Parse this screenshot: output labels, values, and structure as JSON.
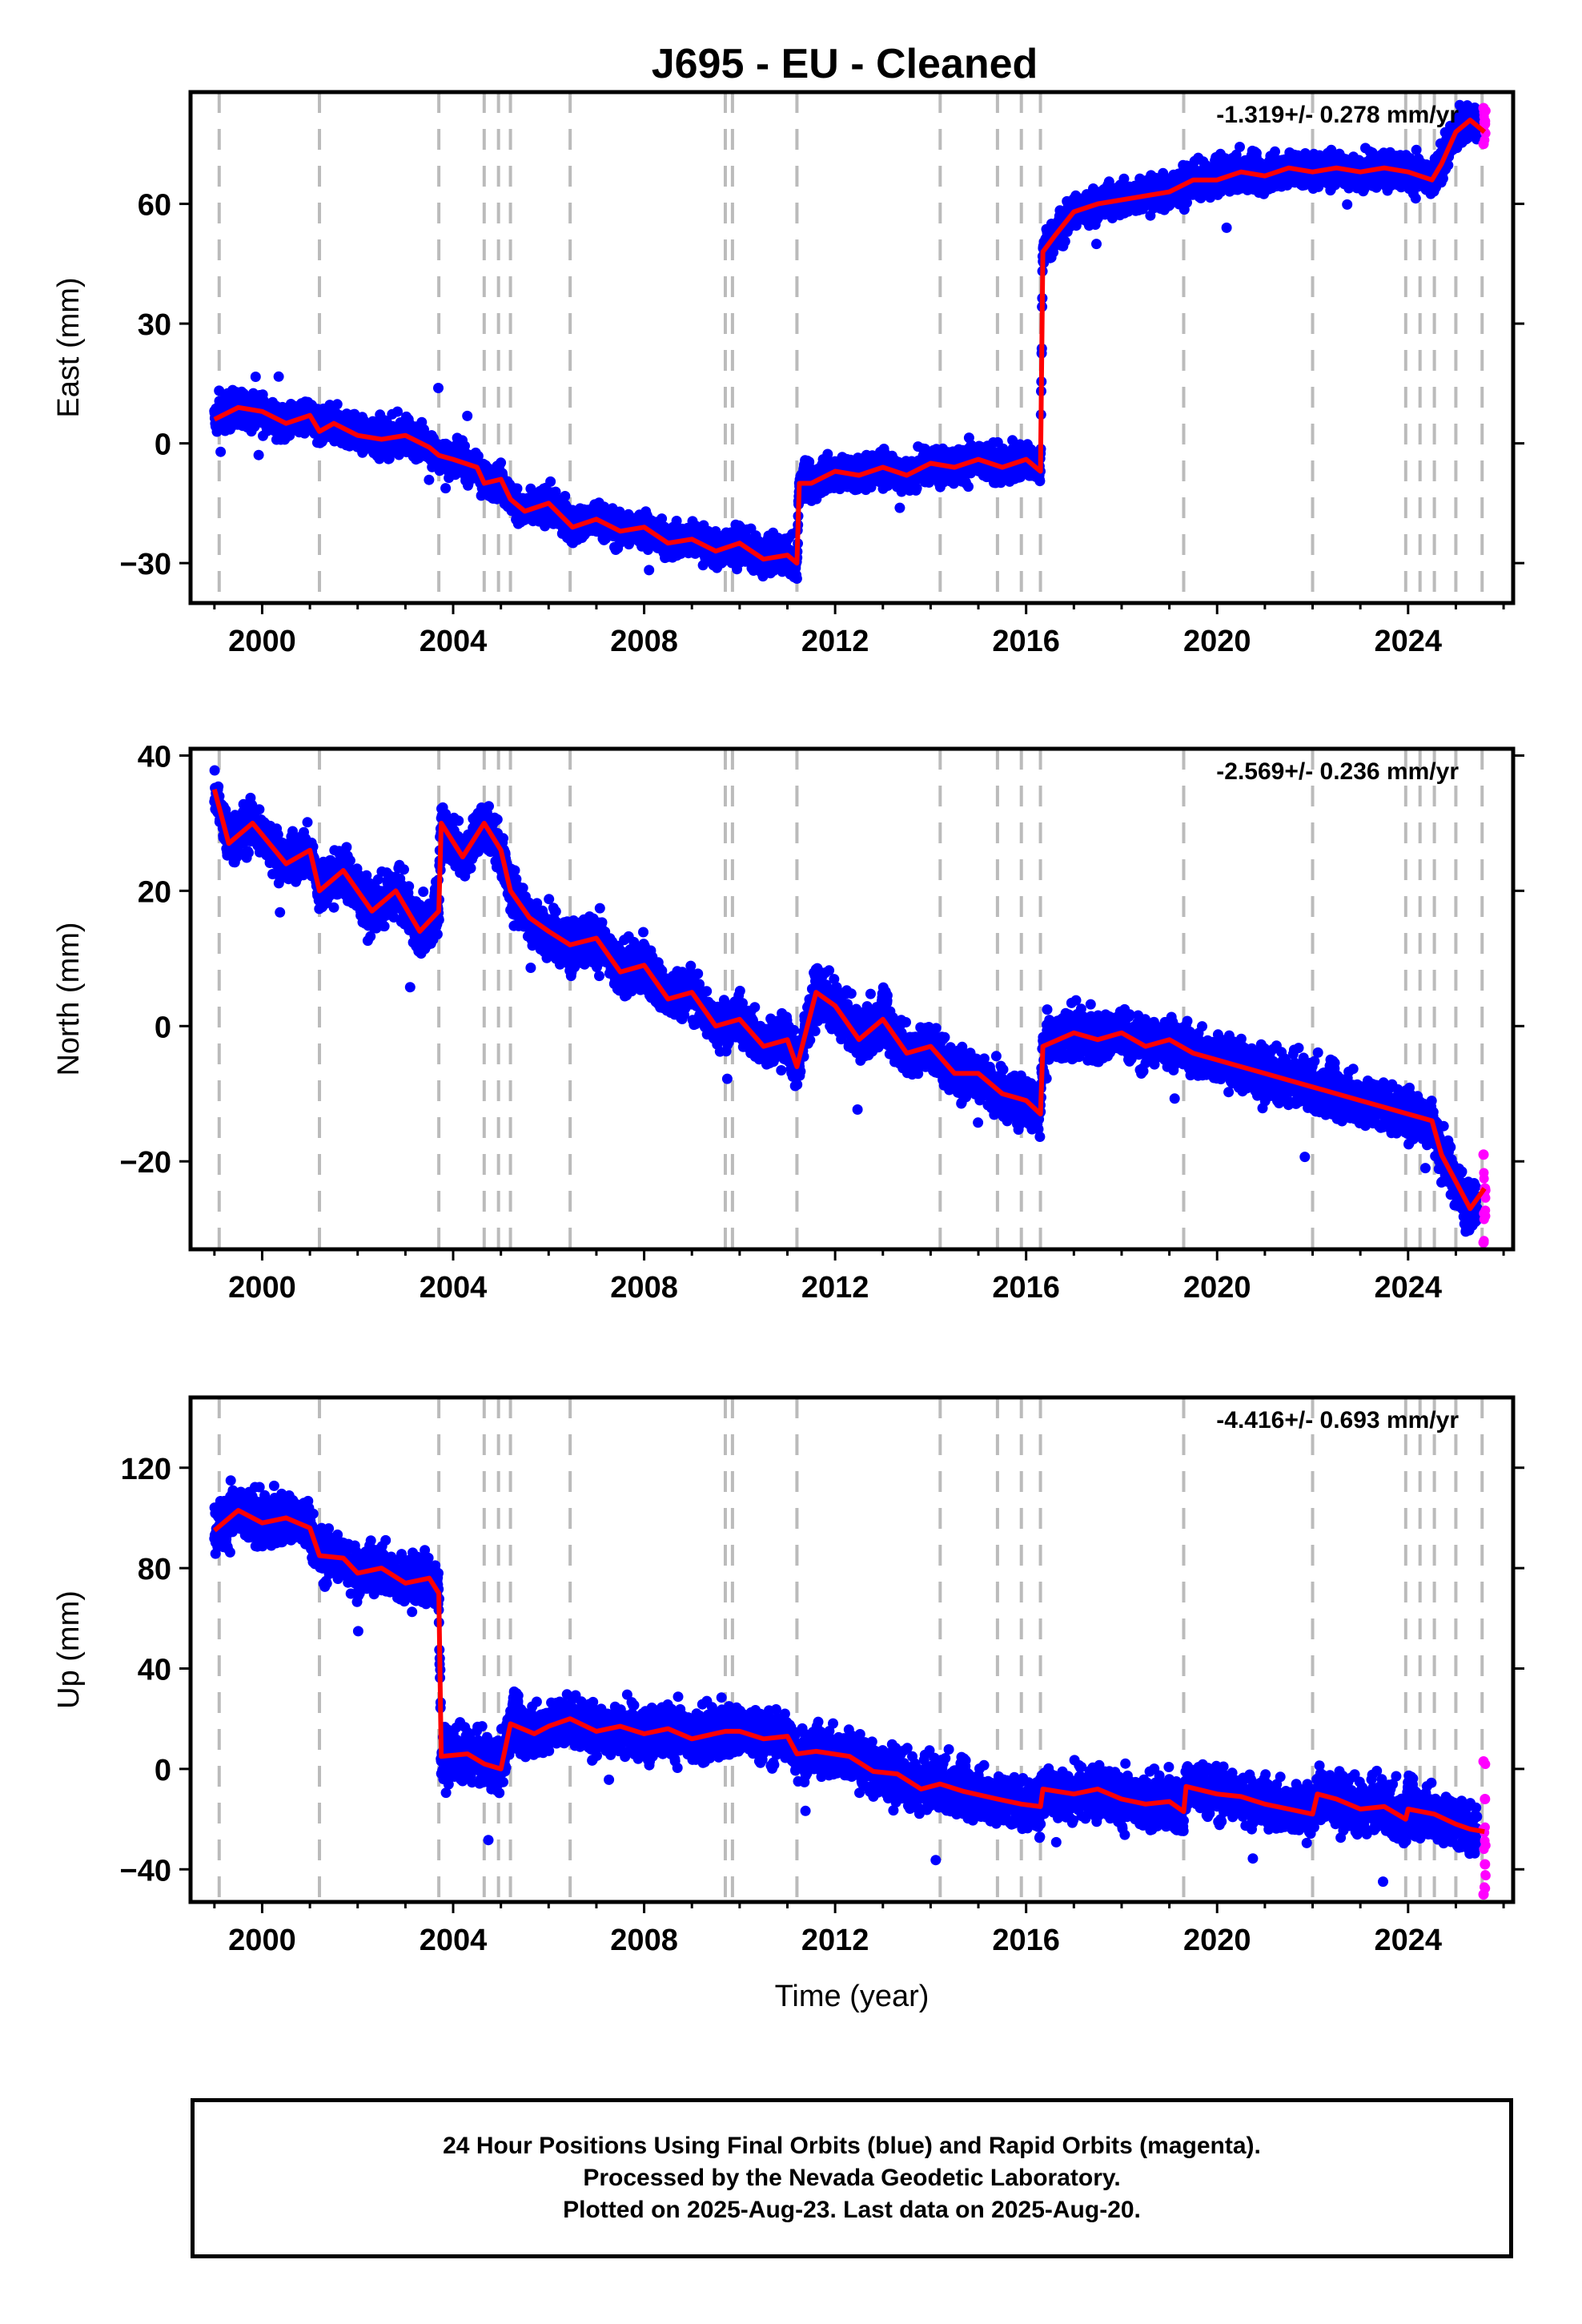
{
  "title": "J695  - EU - Cleaned",
  "footer": {
    "line1": "24 Hour Positions Using Final Orbits (blue) and Rapid Orbits (magenta).",
    "line2": "Processed by the Nevada Geodetic Laboratory.",
    "line3": "Plotted on 2025-Aug-23. Last data on 2025-Aug-20."
  },
  "colors": {
    "final": "#0000ff",
    "rapid": "#ff00ff",
    "model": "#ff0000",
    "events": "#bbbbbb",
    "frame": "#000000"
  },
  "chart_data": [
    {
      "type": "scatter",
      "component": "East",
      "ylabel": "East (mm)",
      "xlabel": "",
      "rate": "-1.319+/- 0.278 mm/yr",
      "xlim": [
        1998.5,
        2026.2
      ],
      "ylim": [
        -40,
        88
      ],
      "xticks": [
        2000,
        2004,
        2008,
        2012,
        2016,
        2020,
        2024
      ],
      "yticks": [
        -30,
        0,
        30,
        60
      ],
      "events": [
        1999.1,
        2001.2,
        2003.7,
        2004.65,
        2004.95,
        2005.2,
        2006.45,
        2009.7,
        2009.85,
        2011.2,
        2014.2,
        2015.4,
        2015.9,
        2016.3,
        2019.3,
        2022.0,
        2023.95,
        2024.25,
        2024.55,
        2025.0,
        2025.55
      ],
      "model": [
        [
          1999.0,
          6.0
        ],
        [
          1999.5,
          9.0
        ],
        [
          2000.0,
          8.0
        ],
        [
          2000.5,
          5.0
        ],
        [
          2001.0,
          7.0
        ],
        [
          2001.2,
          3.0
        ],
        [
          2001.5,
          5.0
        ],
        [
          2002.0,
          2.0
        ],
        [
          2002.5,
          1.0
        ],
        [
          2003.0,
          2.0
        ],
        [
          2003.5,
          -1.0
        ],
        [
          2003.7,
          -3.0
        ],
        [
          2004.0,
          -4.0
        ],
        [
          2004.5,
          -6.0
        ],
        [
          2004.65,
          -10.0
        ],
        [
          2005.0,
          -9.0
        ],
        [
          2005.2,
          -14.0
        ],
        [
          2005.5,
          -17.0
        ],
        [
          2006.0,
          -15.0
        ],
        [
          2006.5,
          -21.0
        ],
        [
          2007.0,
          -19.0
        ],
        [
          2007.5,
          -22.0
        ],
        [
          2008.0,
          -21.0
        ],
        [
          2008.5,
          -25.0
        ],
        [
          2009.0,
          -24.0
        ],
        [
          2009.5,
          -27.0
        ],
        [
          2010.0,
          -25.0
        ],
        [
          2010.5,
          -29.0
        ],
        [
          2011.0,
          -28.0
        ],
        [
          2011.2,
          -30.0
        ],
        [
          2011.25,
          -10.0
        ],
        [
          2011.5,
          -10.0
        ],
        [
          2012.0,
          -7.0
        ],
        [
          2012.5,
          -8.0
        ],
        [
          2013.0,
          -6.0
        ],
        [
          2013.5,
          -8.0
        ],
        [
          2014.0,
          -5.0
        ],
        [
          2014.5,
          -6.0
        ],
        [
          2015.0,
          -4.0
        ],
        [
          2015.5,
          -6.0
        ],
        [
          2016.0,
          -4.0
        ],
        [
          2016.3,
          -7.0
        ],
        [
          2016.35,
          48.0
        ],
        [
          2016.6,
          52.0
        ],
        [
          2017.0,
          58.0
        ],
        [
          2017.5,
          60.0
        ],
        [
          2018.0,
          61.0
        ],
        [
          2018.5,
          62.0
        ],
        [
          2019.0,
          63.0
        ],
        [
          2019.5,
          66.0
        ],
        [
          2020.0,
          66.0
        ],
        [
          2020.5,
          68.0
        ],
        [
          2021.0,
          67.0
        ],
        [
          2021.5,
          69.0
        ],
        [
          2022.0,
          68.0
        ],
        [
          2022.5,
          69.0
        ],
        [
          2023.0,
          68.0
        ],
        [
          2023.5,
          69.0
        ],
        [
          2024.0,
          68.0
        ],
        [
          2024.5,
          66.0
        ],
        [
          2024.7,
          70.0
        ],
        [
          2025.0,
          78.0
        ],
        [
          2025.3,
          81.0
        ],
        [
          2025.6,
          78.0
        ]
      ],
      "noise": 3,
      "rapid_y": [
        75,
        80,
        84
      ]
    },
    {
      "type": "scatter",
      "component": "North",
      "ylabel": "North (mm)",
      "xlabel": "",
      "rate": "-2.569+/- 0.236 mm/yr",
      "xlim": [
        1998.5,
        2026.2
      ],
      "ylim": [
        -33,
        41
      ],
      "xticks": [
        2000,
        2004,
        2008,
        2012,
        2016,
        2020,
        2024
      ],
      "yticks": [
        -20,
        0,
        20,
        40
      ],
      "events": [
        1999.1,
        2001.2,
        2003.7,
        2004.65,
        2004.95,
        2005.2,
        2006.45,
        2009.7,
        2009.85,
        2011.2,
        2014.2,
        2015.4,
        2015.9,
        2016.3,
        2019.3,
        2022.0,
        2023.95,
        2024.25,
        2024.55,
        2025.0,
        2025.55
      ],
      "model": [
        [
          1999.0,
          35.0
        ],
        [
          1999.3,
          27.0
        ],
        [
          1999.8,
          30.0
        ],
        [
          2000.5,
          24.0
        ],
        [
          2001.0,
          26.0
        ],
        [
          2001.2,
          20.0
        ],
        [
          2001.7,
          23.0
        ],
        [
          2002.3,
          17.0
        ],
        [
          2002.8,
          20.0
        ],
        [
          2003.3,
          14.0
        ],
        [
          2003.7,
          17.0
        ],
        [
          2003.75,
          30.0
        ],
        [
          2004.2,
          25.0
        ],
        [
          2004.65,
          30.0
        ],
        [
          2005.0,
          26.0
        ],
        [
          2005.2,
          20.0
        ],
        [
          2005.6,
          16.0
        ],
        [
          2006.0,
          14.0
        ],
        [
          2006.45,
          12.0
        ],
        [
          2007.0,
          13.0
        ],
        [
          2007.5,
          8.0
        ],
        [
          2008.0,
          9.0
        ],
        [
          2008.5,
          4.0
        ],
        [
          2009.0,
          5.0
        ],
        [
          2009.5,
          0.0
        ],
        [
          2010.0,
          1.0
        ],
        [
          2010.5,
          -3.0
        ],
        [
          2011.0,
          -2.0
        ],
        [
          2011.2,
          -6.0
        ],
        [
          2011.6,
          5.0
        ],
        [
          2012.0,
          3.0
        ],
        [
          2012.5,
          -2.0
        ],
        [
          2013.0,
          1.0
        ],
        [
          2013.5,
          -4.0
        ],
        [
          2014.0,
          -3.0
        ],
        [
          2014.5,
          -7.0
        ],
        [
          2015.0,
          -7.0
        ],
        [
          2015.5,
          -10.0
        ],
        [
          2016.0,
          -11.0
        ],
        [
          2016.3,
          -13.0
        ],
        [
          2016.35,
          -3.0
        ],
        [
          2017.0,
          -1.0
        ],
        [
          2017.5,
          -2.0
        ],
        [
          2018.0,
          -1.0
        ],
        [
          2018.5,
          -3.0
        ],
        [
          2019.0,
          -2.0
        ],
        [
          2019.5,
          -4.0
        ],
        [
          2020.0,
          -5.0
        ],
        [
          2020.5,
          -6.0
        ],
        [
          2021.0,
          -7.0
        ],
        [
          2021.5,
          -8.0
        ],
        [
          2022.0,
          -9.0
        ],
        [
          2022.5,
          -10.0
        ],
        [
          2023.0,
          -11.0
        ],
        [
          2023.5,
          -12.0
        ],
        [
          2024.0,
          -13.0
        ],
        [
          2024.5,
          -14.0
        ],
        [
          2024.7,
          -19.0
        ],
        [
          2025.0,
          -23.0
        ],
        [
          2025.3,
          -27.0
        ],
        [
          2025.6,
          -24.0
        ]
      ],
      "noise": 2.5,
      "rapid_y": [
        -32,
        -24,
        -19
      ]
    },
    {
      "type": "scatter",
      "component": "Up",
      "ylabel": "Up (mm)",
      "xlabel": "Time (year)",
      "rate": "-4.416+/- 0.693 mm/yr",
      "xlim": [
        1998.5,
        2026.2
      ],
      "ylim": [
        -53,
        148
      ],
      "xticks": [
        2000,
        2004,
        2008,
        2012,
        2016,
        2020,
        2024
      ],
      "yticks": [
        -40,
        0,
        40,
        80,
        120
      ],
      "events": [
        1999.1,
        2001.2,
        2003.7,
        2004.65,
        2004.95,
        2005.2,
        2006.45,
        2009.7,
        2009.85,
        2011.2,
        2014.2,
        2015.4,
        2015.9,
        2016.3,
        2019.3,
        2022.0,
        2023.95,
        2024.25,
        2024.55,
        2025.0,
        2025.55
      ],
      "model": [
        [
          1999.0,
          95.0
        ],
        [
          1999.5,
          103.0
        ],
        [
          2000.0,
          98.0
        ],
        [
          2000.5,
          100.0
        ],
        [
          2001.0,
          96.0
        ],
        [
          2001.2,
          85.0
        ],
        [
          2001.7,
          84.0
        ],
        [
          2002.0,
          78.0
        ],
        [
          2002.5,
          80.0
        ],
        [
          2003.0,
          74.0
        ],
        [
          2003.5,
          76.0
        ],
        [
          2003.7,
          70.0
        ],
        [
          2003.75,
          5.0
        ],
        [
          2004.3,
          6.0
        ],
        [
          2004.65,
          2.0
        ],
        [
          2005.0,
          0.0
        ],
        [
          2005.2,
          18.0
        ],
        [
          2005.7,
          14.0
        ],
        [
          2006.0,
          17.0
        ],
        [
          2006.45,
          20.0
        ],
        [
          2007.0,
          15.0
        ],
        [
          2007.5,
          17.0
        ],
        [
          2008.0,
          14.0
        ],
        [
          2008.5,
          16.0
        ],
        [
          2009.0,
          12.0
        ],
        [
          2009.7,
          15.0
        ],
        [
          2010.0,
          15.0
        ],
        [
          2010.5,
          12.0
        ],
        [
          2011.0,
          13.0
        ],
        [
          2011.2,
          6.0
        ],
        [
          2011.6,
          7.0
        ],
        [
          2012.3,
          5.0
        ],
        [
          2012.8,
          -1.0
        ],
        [
          2013.3,
          -2.0
        ],
        [
          2013.8,
          -8.0
        ],
        [
          2014.2,
          -6.0
        ],
        [
          2014.7,
          -9.0
        ],
        [
          2015.4,
          -12.0
        ],
        [
          2015.9,
          -14.0
        ],
        [
          2016.3,
          -15.0
        ],
        [
          2016.35,
          -8.0
        ],
        [
          2017.0,
          -10.0
        ],
        [
          2017.5,
          -8.0
        ],
        [
          2018.0,
          -12.0
        ],
        [
          2018.5,
          -14.0
        ],
        [
          2019.0,
          -13.0
        ],
        [
          2019.3,
          -17.0
        ],
        [
          2019.35,
          -7.0
        ],
        [
          2020.0,
          -10.0
        ],
        [
          2020.5,
          -11.0
        ],
        [
          2021.0,
          -14.0
        ],
        [
          2021.5,
          -16.0
        ],
        [
          2022.0,
          -18.0
        ],
        [
          2022.1,
          -10.0
        ],
        [
          2022.5,
          -12.0
        ],
        [
          2023.0,
          -16.0
        ],
        [
          2023.5,
          -15.0
        ],
        [
          2023.95,
          -20.0
        ],
        [
          2024.0,
          -16.0
        ],
        [
          2024.55,
          -18.0
        ],
        [
          2025.0,
          -22.0
        ],
        [
          2025.3,
          -24.0
        ],
        [
          2025.6,
          -25.0
        ]
      ],
      "noise": 7,
      "rapid_y": [
        -50,
        -38,
        -24,
        -12,
        3
      ]
    }
  ]
}
